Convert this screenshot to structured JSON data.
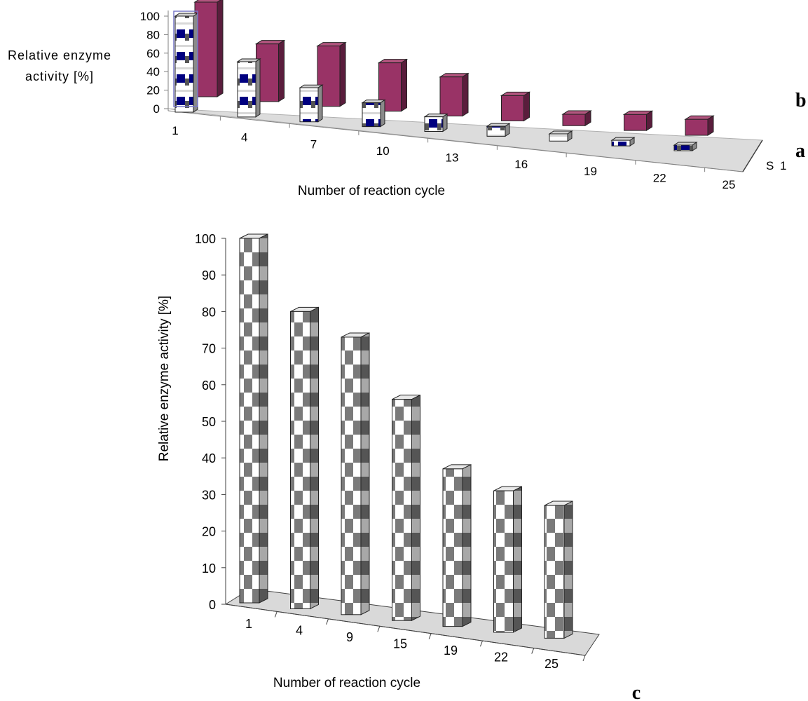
{
  "chart_data": [
    {
      "type": "bar",
      "panel": "top (3D bars, two series)",
      "ylabel_lines": [
        "Relative enzyme",
        "activity [%]"
      ],
      "xlabel": "Number of reaction cycle",
      "categories": [
        "1",
        "4",
        "7",
        "10",
        "13",
        "16",
        "19",
        "22",
        "25"
      ],
      "yticks": [
        "0",
        "20",
        "40",
        "60",
        "80",
        "100"
      ],
      "ylim": [
        0,
        100
      ],
      "depth_label": "S 1",
      "series": [
        {
          "name": "a",
          "color": "#000080",
          "pattern": "checkered white/navy cylinder",
          "values": [
            100,
            56,
            33,
            22,
            12,
            7,
            4,
            2,
            2
          ]
        },
        {
          "name": "b",
          "color": "#993366",
          "pattern": "solid magenta box",
          "values": [
            100,
            60,
            63,
            50,
            40,
            25,
            10,
            15,
            15
          ]
        }
      ],
      "panel_labels": [
        "b",
        "a"
      ]
    },
    {
      "type": "bar",
      "panel": "bottom (3D bars)",
      "title": "",
      "ylabel": "Relative enzyme activity [%]",
      "xlabel": "Number of reaction cycle",
      "categories": [
        "1",
        "4",
        "9",
        "15",
        "19",
        "22",
        "25"
      ],
      "values": [
        100,
        80,
        73,
        56,
        37,
        31,
        27
      ],
      "yticks": [
        "0",
        "10",
        "20",
        "30",
        "40",
        "50",
        "60",
        "70",
        "80",
        "90",
        "100"
      ],
      "ylim": [
        0,
        100
      ],
      "color": "#808080",
      "panel_label": "c"
    }
  ]
}
